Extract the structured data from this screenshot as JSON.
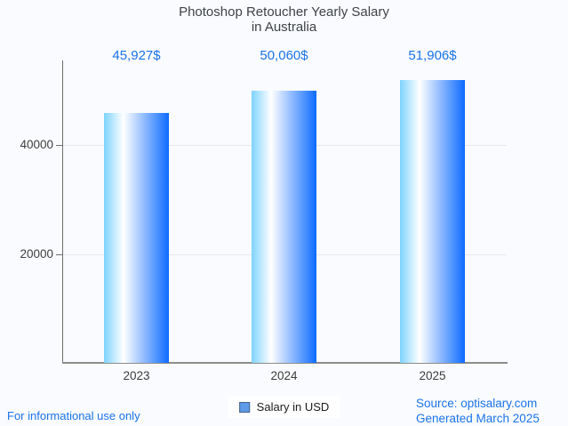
{
  "chart": {
    "title_line1": "Photoshop Retoucher Yearly Salary",
    "title_line2": "in Australia",
    "legend_label": "Salary in USD",
    "footer_left": "For informational use only",
    "source_line1": "Source: optisalary.com",
    "source_line2": "Generated March 2025"
  },
  "chart_data": {
    "type": "bar",
    "title": "Photoshop Retoucher Yearly Salary in Australia",
    "categories": [
      "2023",
      "2024",
      "2025"
    ],
    "values": [
      45927,
      50060,
      51906
    ],
    "value_labels": [
      "45,927$",
      "50,060$",
      "51,906$"
    ],
    "series": [
      {
        "name": "Salary in USD",
        "values": [
          45927,
          50060,
          51906
        ]
      }
    ],
    "xlabel": "",
    "ylabel": "",
    "ylim": [
      0,
      55500
    ],
    "yticks": [
      40000,
      20000
    ],
    "ytick_labels": [
      "40000",
      "20000"
    ],
    "grid": true,
    "legend": [
      "Salary in USD"
    ],
    "legend_position": "bottom",
    "colors": {
      "accent_text": "#1a73e8",
      "bar_gradient_left": "#7ed3fd",
      "bar_gradient_mid": "#ffffff",
      "bar_gradient_right": "#0d6bff",
      "legend_swatch": "#5d9be8",
      "background": "#fafbfe",
      "title_text": "#3f4346"
    }
  }
}
